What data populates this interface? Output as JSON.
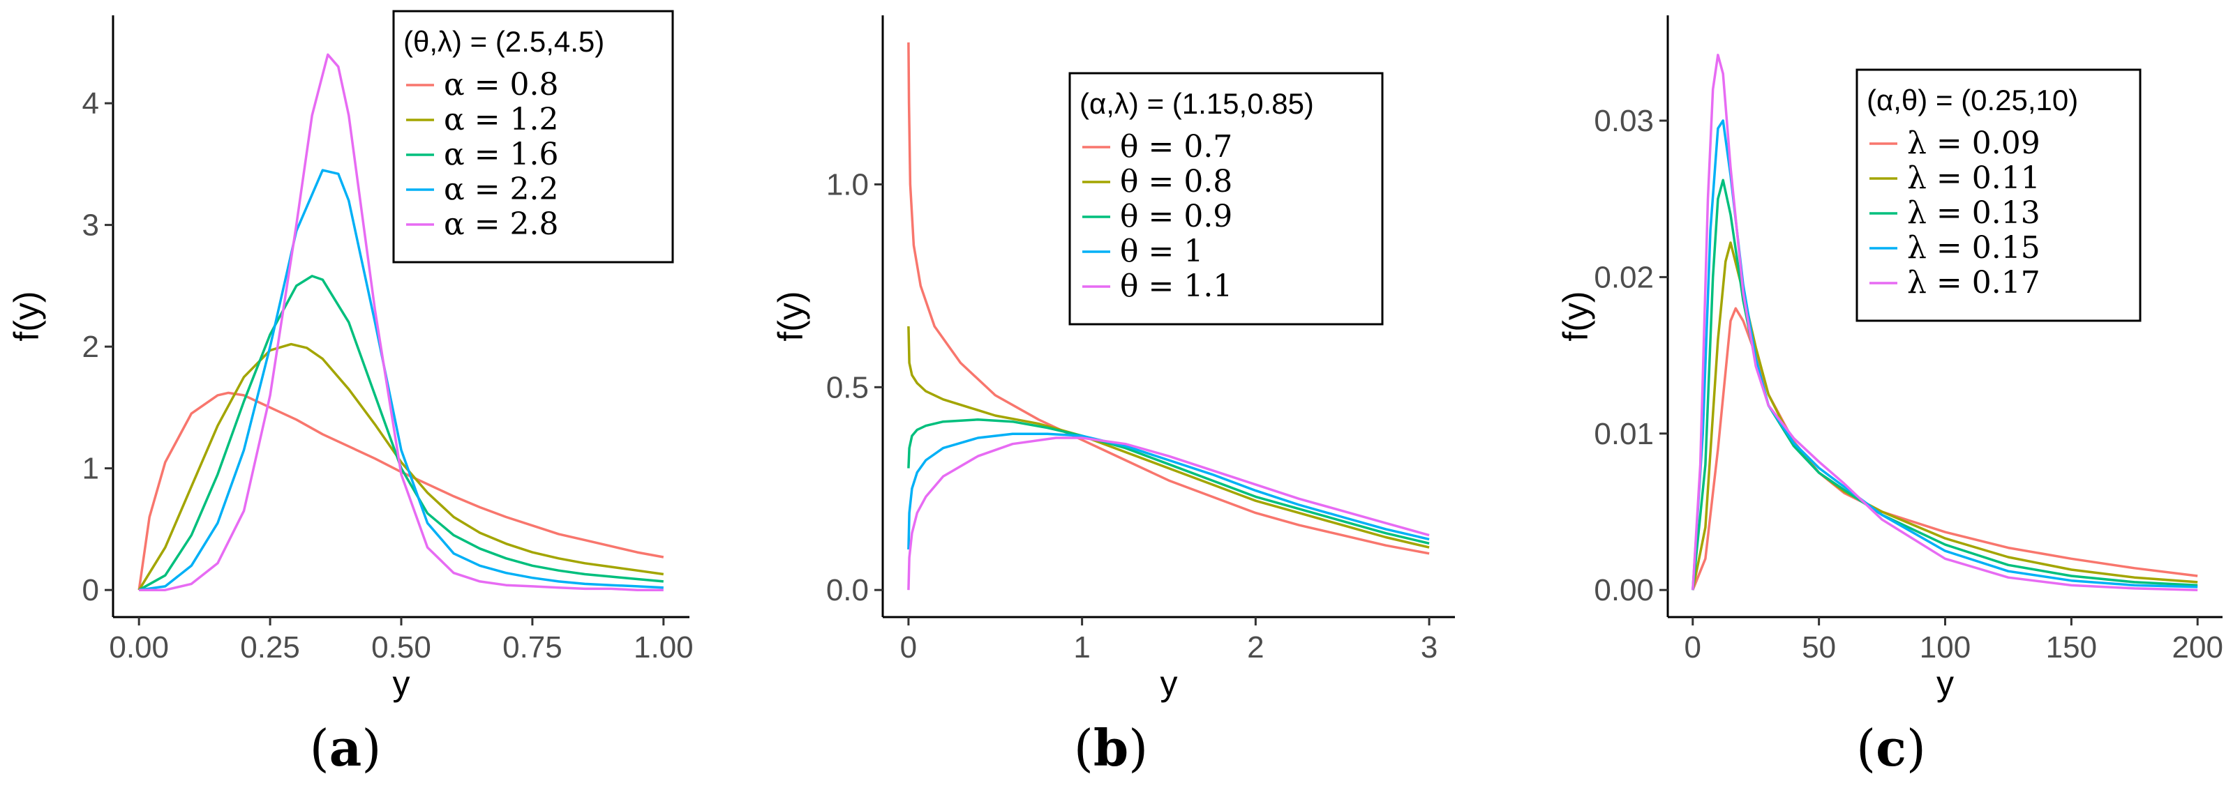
{
  "chart_data": [
    {
      "type": "line",
      "panel": "(a)",
      "caption_letter": "a",
      "xlabel": "y",
      "ylabel": "f(y)",
      "xlim": [
        0,
        1
      ],
      "ylim": [
        0,
        4.5
      ],
      "xticks": [
        "0.00",
        "0.25",
        "0.50",
        "0.75",
        "1.00"
      ],
      "xtick_values": [
        0,
        0.25,
        0.5,
        0.75,
        1.0
      ],
      "yticks": [
        "0",
        "1",
        "2",
        "3",
        "4"
      ],
      "ytick_values": [
        0,
        1,
        2,
        3,
        4
      ],
      "grid": false,
      "legend_position": "top-right",
      "legend_title": "(θ,λ) = (2.5,4.5)",
      "series": [
        {
          "name": "α = 0.8",
          "color": "#F8766D",
          "x": [
            0,
            0.02,
            0.05,
            0.1,
            0.15,
            0.17,
            0.2,
            0.25,
            0.3,
            0.35,
            0.4,
            0.45,
            0.5,
            0.55,
            0.6,
            0.65,
            0.7,
            0.75,
            0.8,
            0.85,
            0.9,
            0.95,
            1.0
          ],
          "y": [
            0,
            0.6,
            1.05,
            1.45,
            1.6,
            1.62,
            1.6,
            1.5,
            1.4,
            1.28,
            1.18,
            1.08,
            0.97,
            0.87,
            0.77,
            0.68,
            0.6,
            0.53,
            0.46,
            0.41,
            0.36,
            0.31,
            0.27
          ]
        },
        {
          "name": "α = 1.2",
          "color": "#A3A500",
          "x": [
            0,
            0.05,
            0.1,
            0.15,
            0.2,
            0.25,
            0.29,
            0.32,
            0.35,
            0.4,
            0.45,
            0.5,
            0.55,
            0.6,
            0.65,
            0.7,
            0.75,
            0.8,
            0.85,
            0.9,
            0.95,
            1.0
          ],
          "y": [
            0,
            0.35,
            0.85,
            1.35,
            1.75,
            1.97,
            2.02,
            1.99,
            1.9,
            1.65,
            1.36,
            1.05,
            0.8,
            0.6,
            0.47,
            0.38,
            0.31,
            0.26,
            0.22,
            0.19,
            0.16,
            0.13
          ]
        },
        {
          "name": "α = 1.6",
          "color": "#00BF7D",
          "x": [
            0,
            0.05,
            0.1,
            0.15,
            0.2,
            0.25,
            0.3,
            0.33,
            0.35,
            0.4,
            0.45,
            0.5,
            0.55,
            0.6,
            0.65,
            0.7,
            0.75,
            0.8,
            0.85,
            0.9,
            0.95,
            1.0
          ],
          "y": [
            0,
            0.12,
            0.45,
            0.95,
            1.55,
            2.1,
            2.5,
            2.58,
            2.55,
            2.2,
            1.6,
            1.0,
            0.63,
            0.45,
            0.34,
            0.26,
            0.2,
            0.16,
            0.13,
            0.11,
            0.09,
            0.07
          ]
        },
        {
          "name": "α = 2.2",
          "color": "#00B0F6",
          "x": [
            0,
            0.05,
            0.1,
            0.15,
            0.2,
            0.25,
            0.3,
            0.35,
            0.38,
            0.4,
            0.45,
            0.5,
            0.55,
            0.6,
            0.65,
            0.7,
            0.75,
            0.8,
            0.85,
            0.9,
            0.95,
            1.0
          ],
          "y": [
            0,
            0.03,
            0.2,
            0.55,
            1.15,
            2.0,
            2.95,
            3.45,
            3.42,
            3.2,
            2.2,
            1.15,
            0.55,
            0.3,
            0.2,
            0.14,
            0.1,
            0.07,
            0.05,
            0.04,
            0.03,
            0.02
          ]
        },
        {
          "name": "α = 2.8",
          "color": "#E76BF3",
          "x": [
            0,
            0.05,
            0.1,
            0.15,
            0.2,
            0.25,
            0.3,
            0.33,
            0.36,
            0.38,
            0.4,
            0.45,
            0.5,
            0.55,
            0.6,
            0.65,
            0.7,
            0.75,
            0.8,
            0.85,
            0.9,
            0.95,
            1.0
          ],
          "y": [
            0,
            0.0,
            0.05,
            0.22,
            0.65,
            1.6,
            3.0,
            3.9,
            4.4,
            4.3,
            3.9,
            2.3,
            0.95,
            0.35,
            0.14,
            0.07,
            0.04,
            0.03,
            0.02,
            0.01,
            0.01,
            0.0,
            0.0
          ]
        }
      ]
    },
    {
      "type": "line",
      "panel": "(b)",
      "caption_letter": "b",
      "xlabel": "y",
      "ylabel": "f(y)",
      "xlim": [
        0,
        3
      ],
      "ylim": [
        0,
        1.35
      ],
      "xticks": [
        "0",
        "1",
        "2",
        "3"
      ],
      "xtick_values": [
        0,
        1,
        2,
        3
      ],
      "yticks": [
        "0.0",
        "0.5",
        "1.0"
      ],
      "ytick_values": [
        0,
        0.5,
        1.0
      ],
      "grid": false,
      "legend_position": "top-right",
      "legend_title": "(α,λ) = (1.15,0.85)",
      "series": [
        {
          "name": "θ = 0.7",
          "color": "#F8766D",
          "x": [
            0,
            0.003,
            0.01,
            0.03,
            0.07,
            0.15,
            0.3,
            0.5,
            0.75,
            1.0,
            1.25,
            1.5,
            1.75,
            2.0,
            2.25,
            2.5,
            2.75,
            3.0
          ],
          "y": [
            1.35,
            1.2,
            1.0,
            0.85,
            0.75,
            0.65,
            0.56,
            0.48,
            0.42,
            0.37,
            0.32,
            0.27,
            0.23,
            0.19,
            0.16,
            0.135,
            0.11,
            0.09
          ]
        },
        {
          "name": "θ = 0.8",
          "color": "#A3A500",
          "x": [
            0,
            0.005,
            0.02,
            0.05,
            0.1,
            0.2,
            0.35,
            0.5,
            0.75,
            1.0,
            1.25,
            1.5,
            1.75,
            2.0,
            2.25,
            2.5,
            2.75,
            3.0
          ],
          "y": [
            0.65,
            0.56,
            0.53,
            0.51,
            0.49,
            0.47,
            0.45,
            0.43,
            0.41,
            0.38,
            0.34,
            0.3,
            0.26,
            0.22,
            0.19,
            0.16,
            0.13,
            0.105
          ]
        },
        {
          "name": "θ = 0.9",
          "color": "#00BF7D",
          "x": [
            0,
            0.005,
            0.02,
            0.05,
            0.1,
            0.2,
            0.4,
            0.6,
            0.8,
            1.0,
            1.25,
            1.5,
            1.75,
            2.0,
            2.25,
            2.5,
            2.75,
            3.0
          ],
          "y": [
            0.3,
            0.35,
            0.38,
            0.395,
            0.405,
            0.415,
            0.42,
            0.415,
            0.4,
            0.38,
            0.35,
            0.31,
            0.27,
            0.23,
            0.2,
            0.17,
            0.14,
            0.115
          ]
        },
        {
          "name": "θ = 1",
          "color": "#00B0F6",
          "x": [
            0,
            0.005,
            0.02,
            0.05,
            0.1,
            0.2,
            0.4,
            0.6,
            0.8,
            1.0,
            1.25,
            1.5,
            1.75,
            2.0,
            2.25,
            2.5,
            2.75,
            3.0
          ],
          "y": [
            0.1,
            0.19,
            0.25,
            0.29,
            0.32,
            0.35,
            0.375,
            0.385,
            0.385,
            0.38,
            0.355,
            0.32,
            0.285,
            0.245,
            0.21,
            0.18,
            0.15,
            0.125
          ]
        },
        {
          "name": "θ = 1.1",
          "color": "#E76BF3",
          "x": [
            0,
            0.005,
            0.02,
            0.05,
            0.1,
            0.2,
            0.4,
            0.6,
            0.85,
            1.0,
            1.25,
            1.5,
            1.75,
            2.0,
            2.25,
            2.5,
            2.75,
            3.0
          ],
          "y": [
            0.0,
            0.08,
            0.14,
            0.19,
            0.23,
            0.28,
            0.33,
            0.36,
            0.375,
            0.375,
            0.36,
            0.33,
            0.295,
            0.26,
            0.225,
            0.195,
            0.165,
            0.135
          ]
        }
      ]
    },
    {
      "type": "line",
      "panel": "(c)",
      "caption_letter": "c",
      "xlabel": "y",
      "ylabel": "f(y)",
      "xlim": [
        0,
        200
      ],
      "ylim": [
        0,
        0.035
      ],
      "xticks": [
        "0",
        "50",
        "100",
        "150",
        "200"
      ],
      "xtick_values": [
        0,
        50,
        100,
        150,
        200
      ],
      "yticks": [
        "0.00",
        "0.01",
        "0.02",
        "0.03"
      ],
      "ytick_values": [
        0,
        0.01,
        0.02,
        0.03
      ],
      "grid": false,
      "legend_position": "top-right",
      "legend_title": "(α,θ) = (0.25,10)",
      "series": [
        {
          "name": "λ = 0.09",
          "color": "#F8766D",
          "x": [
            0,
            5,
            10,
            15,
            17,
            20,
            25,
            30,
            40,
            50,
            60,
            75,
            100,
            125,
            150,
            175,
            200
          ],
          "y": [
            0,
            0.002,
            0.009,
            0.0172,
            0.018,
            0.0172,
            0.015,
            0.0125,
            0.0095,
            0.0075,
            0.0062,
            0.005,
            0.0037,
            0.0027,
            0.002,
            0.0014,
            0.0009
          ]
        },
        {
          "name": "λ = 0.11",
          "color": "#A3A500",
          "x": [
            0,
            5,
            10,
            13,
            15,
            20,
            25,
            30,
            40,
            50,
            60,
            75,
            100,
            125,
            150,
            175,
            200
          ],
          "y": [
            0,
            0.004,
            0.016,
            0.021,
            0.0222,
            0.019,
            0.0155,
            0.0125,
            0.0093,
            0.0075,
            0.0063,
            0.005,
            0.0033,
            0.0021,
            0.0013,
            0.0008,
            0.0005
          ]
        },
        {
          "name": "λ = 0.13",
          "color": "#00BF7D",
          "x": [
            0,
            5,
            8,
            10,
            12,
            15,
            20,
            25,
            30,
            40,
            50,
            60,
            75,
            100,
            125,
            150,
            175,
            200
          ],
          "y": [
            0,
            0.008,
            0.02,
            0.025,
            0.0262,
            0.024,
            0.0185,
            0.0145,
            0.0118,
            0.0092,
            0.0075,
            0.0064,
            0.0048,
            0.0029,
            0.0016,
            0.0009,
            0.0005,
            0.0003
          ]
        },
        {
          "name": "λ = 0.15",
          "color": "#00B0F6",
          "x": [
            0,
            4,
            7,
            10,
            12,
            15,
            20,
            25,
            30,
            40,
            50,
            60,
            75,
            100,
            125,
            150,
            175,
            200
          ],
          "y": [
            0,
            0.01,
            0.023,
            0.0295,
            0.03,
            0.0265,
            0.0195,
            0.0148,
            0.0118,
            0.0094,
            0.0078,
            0.0066,
            0.0048,
            0.0025,
            0.0012,
            0.0006,
            0.0003,
            0.0002
          ]
        },
        {
          "name": "λ = 0.17",
          "color": "#E76BF3",
          "x": [
            0,
            3,
            6,
            8,
            10,
            12,
            15,
            20,
            25,
            30,
            40,
            50,
            60,
            75,
            100,
            125,
            150,
            175,
            200
          ],
          "y": [
            0,
            0.008,
            0.025,
            0.032,
            0.0342,
            0.033,
            0.027,
            0.019,
            0.0143,
            0.0118,
            0.0097,
            0.0082,
            0.0068,
            0.0045,
            0.002,
            0.0008,
            0.0003,
            0.0001,
            0.0
          ]
        }
      ]
    }
  ]
}
